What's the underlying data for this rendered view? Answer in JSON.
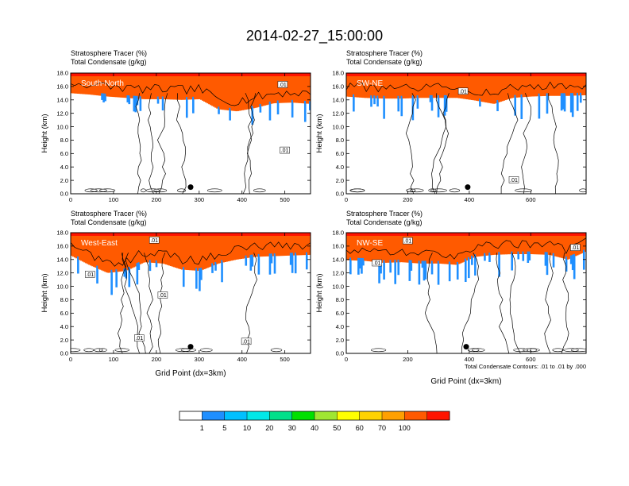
{
  "figure": {
    "title": "2014-02-27_15:00:00",
    "xlabel": "Grid Point (dx=3km)",
    "ylabel": "Height (km)",
    "header_line1": "Stratosphere Tracer   (%)",
    "header_line2": "Total Condensate   (g/kg)",
    "contour_note": "Total Condensate Contours: .01 to .01 by .000",
    "contour_label": ".01"
  },
  "colorbar": {
    "colors": [
      "#ffffff",
      "#1f8fff",
      "#00c0ff",
      "#00e8e8",
      "#00e08a",
      "#00e000",
      "#a0e632",
      "#ffff00",
      "#ffd200",
      "#ffa000",
      "#ff5a00",
      "#ff1400"
    ],
    "labels": [
      "1",
      "5",
      "10",
      "20",
      "30",
      "40",
      "50",
      "60",
      "70",
      "100"
    ]
  },
  "chart_data": [
    {
      "type": "heatmap",
      "panel": "South-North",
      "title": "",
      "xlabel": "",
      "ylabel": "Height (km)",
      "xlim": [
        0,
        560
      ],
      "ylim": [
        0,
        18
      ],
      "xticks": [
        0,
        100,
        200,
        300,
        400,
        500
      ],
      "yticks": [
        "0.0",
        "2.0",
        "4.0",
        "6.0",
        "8.0",
        "10.0",
        "12.0",
        "14.0",
        "16.0",
        "18.0"
      ],
      "tracer_base_km": [
        15.0,
        14.8,
        14.5,
        14.3,
        14.1,
        14.1,
        14.0,
        14.1,
        12.6,
        12.3,
        12.8,
        13.5,
        13.6,
        13.4
      ],
      "dot_x": 280,
      "contour_label_x": [
        495,
        500
      ],
      "contour_label_y": [
        16.3,
        6.5
      ]
    },
    {
      "type": "heatmap",
      "panel": "SW-NE",
      "title": "",
      "xlabel": "",
      "ylabel": "Height (km)",
      "xlim": [
        0,
        780
      ],
      "ylim": [
        0,
        18
      ],
      "xticks": [
        0,
        200,
        400,
        600
      ],
      "yticks": [
        "0.0",
        "2.0",
        "4.0",
        "6.0",
        "8.0",
        "10.0",
        "12.0",
        "14.0",
        "16.0",
        "18.0"
      ],
      "tracer_base_km": [
        14.5,
        14.3,
        14.2,
        14.2,
        14.3,
        14.3,
        14.3,
        13.9,
        13.4,
        14.3,
        14.5,
        14.6,
        14.6,
        14.7
      ],
      "dot_x": 395,
      "contour_label_x": [
        380,
        545
      ],
      "contour_label_y": [
        15.3,
        2.1
      ]
    },
    {
      "type": "heatmap",
      "panel": "West-East",
      "title": "",
      "xlabel": "Grid Point (dx=3km)",
      "ylabel": "Height (km)",
      "xlim": [
        0,
        560
      ],
      "ylim": [
        0,
        18
      ],
      "xticks": [
        0,
        100,
        200,
        300,
        400,
        500
      ],
      "yticks": [
        "0.0",
        "2.0",
        "4.0",
        "6.0",
        "8.0",
        "10.0",
        "12.0",
        "14.0",
        "16.0",
        "18.0"
      ],
      "tracer_base_km": [
        14.6,
        13.2,
        12.0,
        12.3,
        13.6,
        13.4,
        12.5,
        12.3,
        13.4,
        14.0,
        14.4,
        14.5,
        14.6,
        14.7
      ],
      "dot_x": 280,
      "contour_label_x": [
        45,
        160,
        195,
        215,
        410
      ],
      "contour_label_y": [
        11.8,
        2.3,
        16.9,
        8.7,
        1.8
      ]
    },
    {
      "type": "heatmap",
      "panel": "NW-SE",
      "title": "",
      "xlabel": "Grid Point (dx=3km)",
      "ylabel": "Height (km)",
      "xlim": [
        0,
        780
      ],
      "ylim": [
        0,
        18
      ],
      "xticks": [
        0,
        200,
        400,
        600
      ],
      "yticks": [
        "0.0",
        "2.0",
        "4.0",
        "6.0",
        "8.0",
        "10.0",
        "12.0",
        "14.0",
        "16.0",
        "18.0"
      ],
      "tracer_base_km": [
        13.9,
        13.8,
        13.5,
        13.6,
        13.4,
        13.4,
        13.2,
        14.4,
        14.7,
        14.8,
        14.8,
        14.7,
        14.0,
        15.2
      ],
      "dot_x": 390,
      "contour_label_x": [
        100,
        200,
        745
      ],
      "contour_label_y": [
        13.5,
        16.8,
        15.8
      ]
    }
  ]
}
